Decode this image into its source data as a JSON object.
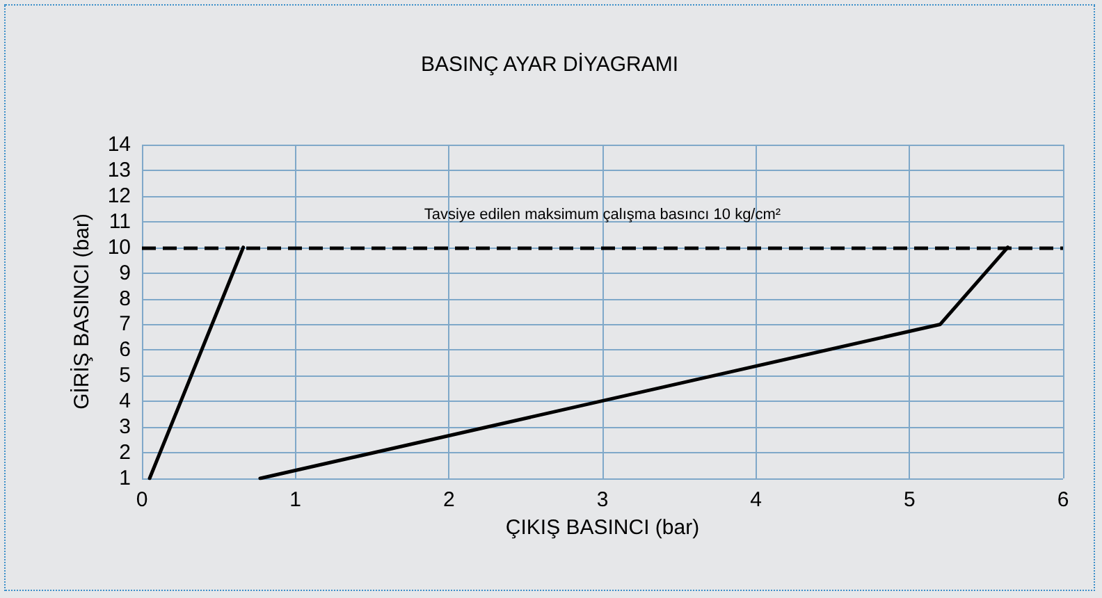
{
  "chart_data": {
    "type": "line",
    "title": "BASINÇ AYAR DİYAGRAMI",
    "xlabel": "ÇIKIŞ BASINCI (bar)",
    "ylabel": "GİRİŞ BASINCI (bar)",
    "series": [
      {
        "color": "#000000",
        "x": [
          0.05,
          0.66
        ],
        "values": [
          1,
          10
        ]
      },
      {
        "color": "#000000",
        "x": [
          0.77,
          5.2,
          5.64
        ],
        "values": [
          1,
          7,
          10
        ]
      }
    ],
    "xlim": [
      0,
      6
    ],
    "xticks": [
      0,
      1,
      2,
      3,
      4,
      5,
      6
    ],
    "ylim": [
      1,
      14
    ],
    "yticks": [
      1,
      2,
      3,
      4,
      5,
      6,
      7,
      8,
      9,
      10,
      11,
      12,
      13,
      14
    ],
    "ref_lines": [
      {
        "axis": "y",
        "value": 10,
        "label": "Tavsiye edilen maksimum çalışma basıncı 10 kg/cm²",
        "color": "#000000",
        "line_style": "dashed"
      }
    ],
    "grid": true,
    "marker": "none",
    "line_style": "solid"
  }
}
